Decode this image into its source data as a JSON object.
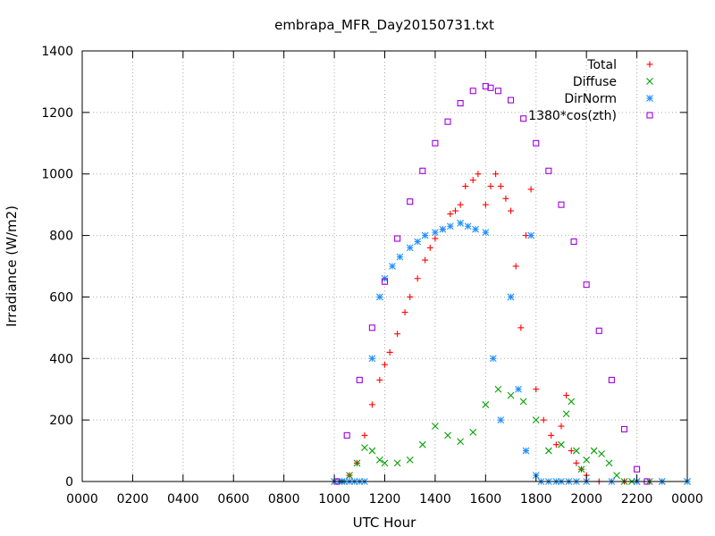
{
  "chart_data": {
    "type": "scatter",
    "title": "embrapa_MFR_Day20150731.txt",
    "xlabel": "UTC Hour",
    "ylabel": "Irradiance (W/m2)",
    "xlim": [
      0,
      24
    ],
    "ylim": [
      0,
      1400
    ],
    "x_tick_labels": [
      "0000",
      "0200",
      "0400",
      "0600",
      "0800",
      "1000",
      "1200",
      "1400",
      "1600",
      "1800",
      "2000",
      "2200",
      "0000"
    ],
    "y_ticks": [
      0,
      200,
      400,
      600,
      800,
      1000,
      1200,
      1400
    ],
    "grid": true,
    "legend_position": "top-right",
    "series": [
      {
        "name": "Total",
        "marker": "plus",
        "color": "#ff0000",
        "x": [
          10.0,
          10.3,
          10.6,
          10.9,
          11.2,
          11.5,
          11.8,
          12.0,
          12.2,
          12.5,
          12.8,
          13.0,
          13.3,
          13.6,
          13.8,
          14.0,
          14.3,
          14.6,
          14.8,
          15.0,
          15.2,
          15.5,
          15.7,
          16.0,
          16.2,
          16.4,
          16.6,
          16.8,
          17.0,
          17.2,
          17.4,
          17.6,
          17.8,
          18.0,
          18.3,
          18.6,
          18.8,
          19.0,
          19.2,
          19.4,
          19.6,
          19.8,
          20.0,
          20.5,
          21.0,
          21.5,
          22.0,
          22.5,
          23.0,
          24.0
        ],
        "y": [
          0,
          0,
          20,
          60,
          150,
          250,
          330,
          380,
          420,
          480,
          550,
          600,
          660,
          720,
          760,
          790,
          820,
          870,
          880,
          900,
          960,
          980,
          1000,
          900,
          960,
          1000,
          960,
          920,
          880,
          700,
          500,
          800,
          950,
          300,
          200,
          150,
          120,
          180,
          280,
          100,
          60,
          40,
          20,
          0,
          0,
          0,
          0,
          0,
          0,
          0
        ]
      },
      {
        "name": "Diffuse",
        "marker": "cross",
        "color": "#00a000",
        "x": [
          10.0,
          10.3,
          10.6,
          10.9,
          11.2,
          11.5,
          11.8,
          12.0,
          12.5,
          13.0,
          13.5,
          14.0,
          14.5,
          15.0,
          15.5,
          16.0,
          16.5,
          17.0,
          17.5,
          18.0,
          18.5,
          19.0,
          19.2,
          19.4,
          19.6,
          19.8,
          20.0,
          20.3,
          20.6,
          20.9,
          21.2,
          21.5,
          21.8,
          22.0,
          22.5,
          23.0,
          24.0
        ],
        "y": [
          0,
          0,
          20,
          60,
          110,
          100,
          70,
          60,
          60,
          70,
          120,
          180,
          150,
          130,
          160,
          250,
          300,
          280,
          260,
          200,
          100,
          120,
          220,
          260,
          100,
          40,
          70,
          100,
          90,
          60,
          20,
          0,
          0,
          0,
          0,
          0,
          0
        ]
      },
      {
        "name": "DirNorm",
        "marker": "star",
        "color": "#1e90ff",
        "x": [
          10.0,
          10.2,
          10.4,
          10.6,
          10.8,
          11.0,
          11.2,
          11.5,
          11.8,
          12.0,
          12.3,
          12.6,
          13.0,
          13.3,
          13.6,
          14.0,
          14.3,
          14.6,
          15.0,
          15.3,
          15.6,
          16.0,
          16.3,
          16.6,
          17.0,
          17.3,
          17.6,
          17.8,
          18.0,
          18.2,
          18.5,
          18.8,
          19.0,
          19.3,
          19.6,
          20.0,
          21.0,
          22.0,
          23.0,
          24.0
        ],
        "y": [
          0,
          0,
          0,
          0,
          0,
          0,
          0,
          400,
          600,
          660,
          700,
          730,
          760,
          780,
          800,
          810,
          820,
          830,
          840,
          830,
          820,
          810,
          400,
          200,
          600,
          300,
          100,
          800,
          20,
          0,
          0,
          0,
          0,
          0,
          0,
          0,
          0,
          0,
          0,
          0
        ]
      },
      {
        "name": "1380*cos(zth)",
        "marker": "square",
        "color": "#a000e0",
        "x": [
          10.1,
          10.5,
          11.0,
          11.5,
          12.0,
          12.5,
          13.0,
          13.5,
          14.0,
          14.5,
          15.0,
          15.5,
          16.0,
          16.2,
          16.5,
          17.0,
          17.5,
          18.0,
          18.5,
          19.0,
          19.5,
          20.0,
          20.5,
          21.0,
          21.5,
          22.0,
          22.4
        ],
        "y": [
          0,
          150,
          330,
          500,
          650,
          790,
          910,
          1010,
          1100,
          1170,
          1230,
          1270,
          1285,
          1280,
          1270,
          1240,
          1180,
          1100,
          1010,
          900,
          780,
          640,
          490,
          330,
          170,
          40,
          0
        ]
      }
    ]
  }
}
